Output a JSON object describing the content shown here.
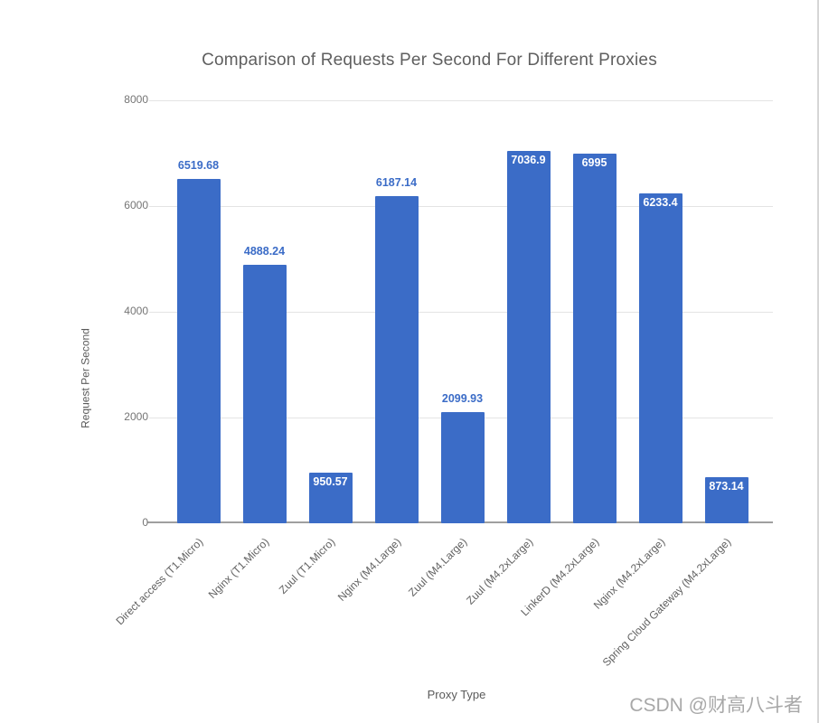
{
  "page": {
    "watermark": "CSDN @财高八斗者"
  },
  "chart_data": {
    "type": "bar",
    "title": "Comparison of Requests Per Second For Different Proxies",
    "xlabel": "Proxy Type",
    "ylabel": "Request Per Second",
    "ylim": [
      0,
      8000
    ],
    "yticks": [
      0,
      2000,
      4000,
      6000,
      8000
    ],
    "grid": true,
    "legend": "none",
    "bar_color": "#3b6cc7",
    "value_label_outside_color": "#3b6cc7",
    "value_label_inside_color": "#ffffff",
    "categories": [
      "Direct access (T1.Micro)",
      "Nginx (T1.Micro)",
      "Zuul (T1.Micro)",
      "Nginx (M4.Large)",
      "Zuul (M4.Large)",
      "Zuul (M4.2xLarge)",
      "LinkerD (M4.2xLarge)",
      "Nginx (M4.2xLarge)",
      "Spring Cloud Gateway (M4.2xLarge)"
    ],
    "values": [
      6519.68,
      4888.24,
      950.57,
      6187.14,
      2099.93,
      7036.9,
      6995,
      6233.4,
      873.14
    ],
    "value_labels": [
      "6519.68",
      "4888.24",
      "950.57",
      "6187.14",
      "2099.93",
      "7036.9",
      "6995",
      "6233.4",
      "873.14"
    ],
    "value_label_placement": [
      "outside",
      "outside",
      "inside",
      "outside",
      "outside",
      "inside",
      "inside",
      "inside",
      "inside"
    ]
  }
}
